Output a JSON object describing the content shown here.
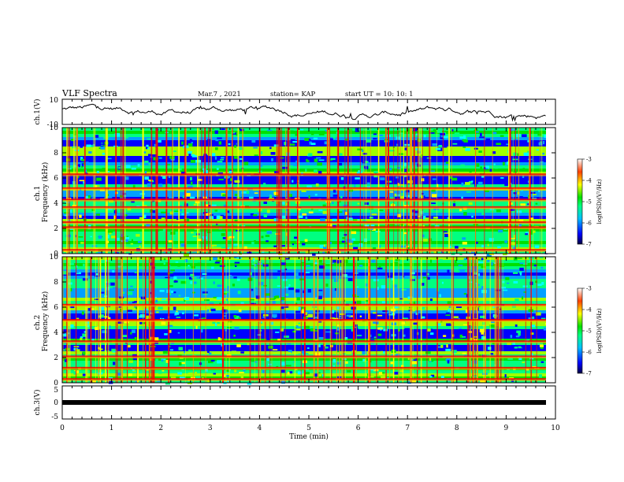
{
  "header": {
    "title": "VLF Spectra",
    "date": "Mar.7 , 2021",
    "station": "station= KAP",
    "start": "start UT =  10: 10: 1"
  },
  "chart_data": [
    {
      "type": "line",
      "panel": "ch1-waveform",
      "ylabel": "ch.1(V)",
      "ylim": [
        -10,
        10
      ],
      "yticks": [
        "10",
        "-10"
      ],
      "xlim": [
        0,
        10
      ],
      "series_note": "noisy voltage trace, roughly between -5 and 6 V",
      "sample_y": [
        2,
        3,
        1,
        4,
        0,
        -2,
        3,
        5,
        4,
        2,
        -1,
        3,
        5,
        6,
        4,
        1,
        -3,
        2,
        4,
        3,
        0,
        -4,
        2,
        3,
        1,
        -2,
        4,
        5,
        3,
        -1
      ]
    },
    {
      "type": "heatmap",
      "panel": "ch1-spectrogram",
      "ylabel": "ch.1\nFrequency (kHz)",
      "ylabel_lines": [
        "ch.1",
        "Frequency (kHz)"
      ],
      "ylim": [
        0,
        10
      ],
      "yticks": [
        "0",
        "2",
        "4",
        "6",
        "8",
        "10"
      ],
      "xlim": [
        0,
        9.83
      ],
      "colorbar": {
        "label": "log(PSD)(V²/Hz)",
        "range": [
          -7,
          -3
        ],
        "ticks": [
          "-3",
          "-4",
          "-5",
          "-6",
          "-7"
        ]
      },
      "bright_bands_khz": [
        0.3,
        2.1,
        2.5,
        3.7,
        4.3,
        5.2,
        6.3
      ],
      "dark_bands_khz": [
        3.1,
        4.8,
        6.1,
        7.6,
        9.0
      ]
    },
    {
      "type": "heatmap",
      "panel": "ch2-spectrogram",
      "ylabel": "ch.2\nFrequency (kHz)",
      "ylabel_lines": [
        "ch.2",
        "Frequency (kHz)"
      ],
      "ylim": [
        0,
        10
      ],
      "yticks": [
        "0",
        "2",
        "4",
        "6",
        "8",
        "10"
      ],
      "xlim": [
        0,
        9.83
      ],
      "colorbar": {
        "label": "log(PSD)(V²/Hz)",
        "range": [
          -7,
          -3
        ],
        "ticks": [
          "-3",
          "-4",
          "-5",
          "-6",
          "-7"
        ]
      },
      "bright_bands_khz": [
        0.3,
        1.2,
        2.1,
        3.3,
        5.0,
        6.2
      ],
      "dark_bands_khz": [
        2.9,
        4.0,
        5.6,
        7.2,
        8.8
      ]
    },
    {
      "type": "line",
      "panel": "ch3-waveform",
      "ylabel": "ch.3(V)",
      "ylim": [
        -5,
        5
      ],
      "yticks": [
        "5",
        "0",
        "-5"
      ],
      "xlim": [
        0,
        10
      ],
      "series_note": "thick flat trace near 0 V"
    }
  ],
  "x_axis": {
    "label": "Time  (min)",
    "ticks": [
      "0",
      "1",
      "2",
      "3",
      "4",
      "5",
      "6",
      "7",
      "8",
      "9",
      "10"
    ]
  },
  "colors": {
    "spectrum": [
      "#000080",
      "#0000ff",
      "#00a0ff",
      "#00ffff",
      "#00ff80",
      "#00e000",
      "#a0ff00",
      "#ffff00",
      "#ffa000",
      "#ff0000",
      "#c00000"
    ]
  }
}
